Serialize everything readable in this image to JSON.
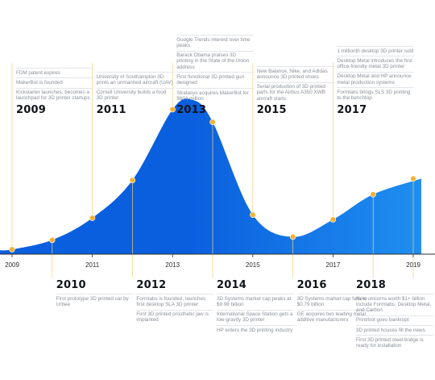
{
  "chart_data": {
    "type": "area",
    "title": "",
    "xlabel": "",
    "ylabel": "",
    "x_ticks": [
      "2009",
      "2011",
      "2013",
      "2015",
      "2017",
      "2019"
    ],
    "xlim": [
      2009,
      2019
    ],
    "ylim": [
      0,
      100
    ],
    "points": [
      {
        "x": 2009,
        "y": 3
      },
      {
        "x": 2010,
        "y": 9
      },
      {
        "x": 2011,
        "y": 23
      },
      {
        "x": 2012,
        "y": 47
      },
      {
        "x": 2013,
        "y": 92
      },
      {
        "x": 2014,
        "y": 84
      },
      {
        "x": 2015,
        "y": 25
      },
      {
        "x": 2016,
        "y": 11
      },
      {
        "x": 2017,
        "y": 22
      },
      {
        "x": 2018,
        "y": 38
      },
      {
        "x": 2019,
        "y": 48
      }
    ],
    "curve": {
      "x": [
        2009,
        2010,
        2011,
        2012,
        2013,
        2013.5,
        2014,
        2015,
        2016,
        2017,
        2018,
        2019.2
      ],
      "y": [
        3,
        9,
        23,
        47,
        92,
        98,
        84,
        25,
        11,
        22,
        38,
        48
      ]
    },
    "fill_colors": [
      "#1f8ff0",
      "#0a5fde"
    ],
    "point_color": "#f5b233",
    "guide_color": "#f7cf7c",
    "annotations": [
      {
        "year": "2009",
        "position": "above",
        "items": [
          "FDM patent expires",
          "MakerBot is founded",
          "Kickstarter launches, becomes a launchpad for 3D printer startups"
        ]
      },
      {
        "year": "2010",
        "position": "below",
        "items": [
          "First prototype 3D printed car by Urbee"
        ]
      },
      {
        "year": "2011",
        "position": "above",
        "items": [
          "University of Southampton 3D prints an unmanned aircraft (UAV)",
          "Cornell University builds a food 3D printer"
        ]
      },
      {
        "year": "2012",
        "position": "below",
        "items": [
          "Formlabs is founded, launches first desktop SLA 3D printer",
          "First 3D printed prosthetic jaw is implanted"
        ]
      },
      {
        "year": "2013",
        "position": "above",
        "items": [
          "Google Trends interest over time peaks",
          "Barack Obama praises 3D printing in the State of the Union address",
          "First functional 3D printed gun designed",
          "Stratasys acquires MakerBot for $604 million"
        ]
      },
      {
        "year": "2014",
        "position": "below",
        "items": [
          "3D Systems market cap peaks at $9.98 billion",
          "International Space Station gets a low-gravity 3D printer",
          "HP enters the 3D printing industry"
        ]
      },
      {
        "year": "2015",
        "position": "above",
        "items": [
          "New Balance, Nike, and Adidas announce 3D printed shoes",
          "Serial production of 3D printed parts for the Airbus A350 XWB aircraft starts"
        ]
      },
      {
        "year": "2016",
        "position": "below",
        "items": [
          "3D Systems market cap falls to $0.79 billion",
          "GE acquires two leading metal additive manufacturers"
        ]
      },
      {
        "year": "2017",
        "position": "above",
        "items": [
          "1 millionth desktop 3D printer sold",
          "Desktop Metal introduces the first office-friendly metal 3D printer",
          "Desktop Metal and HP announce metal production systems",
          "Formlabs brings SLS 3D printing to the benchtop"
        ]
      },
      {
        "year": "2018",
        "position": "below",
        "items": [
          "New unicorns worth $1+ billion include Formlabs, Desktop Metal, and Carbon",
          "Printrbot goes bankrupt",
          "3D printed houses fill the news",
          "First 3D printed steel bridge is ready for installation"
        ]
      }
    ]
  }
}
